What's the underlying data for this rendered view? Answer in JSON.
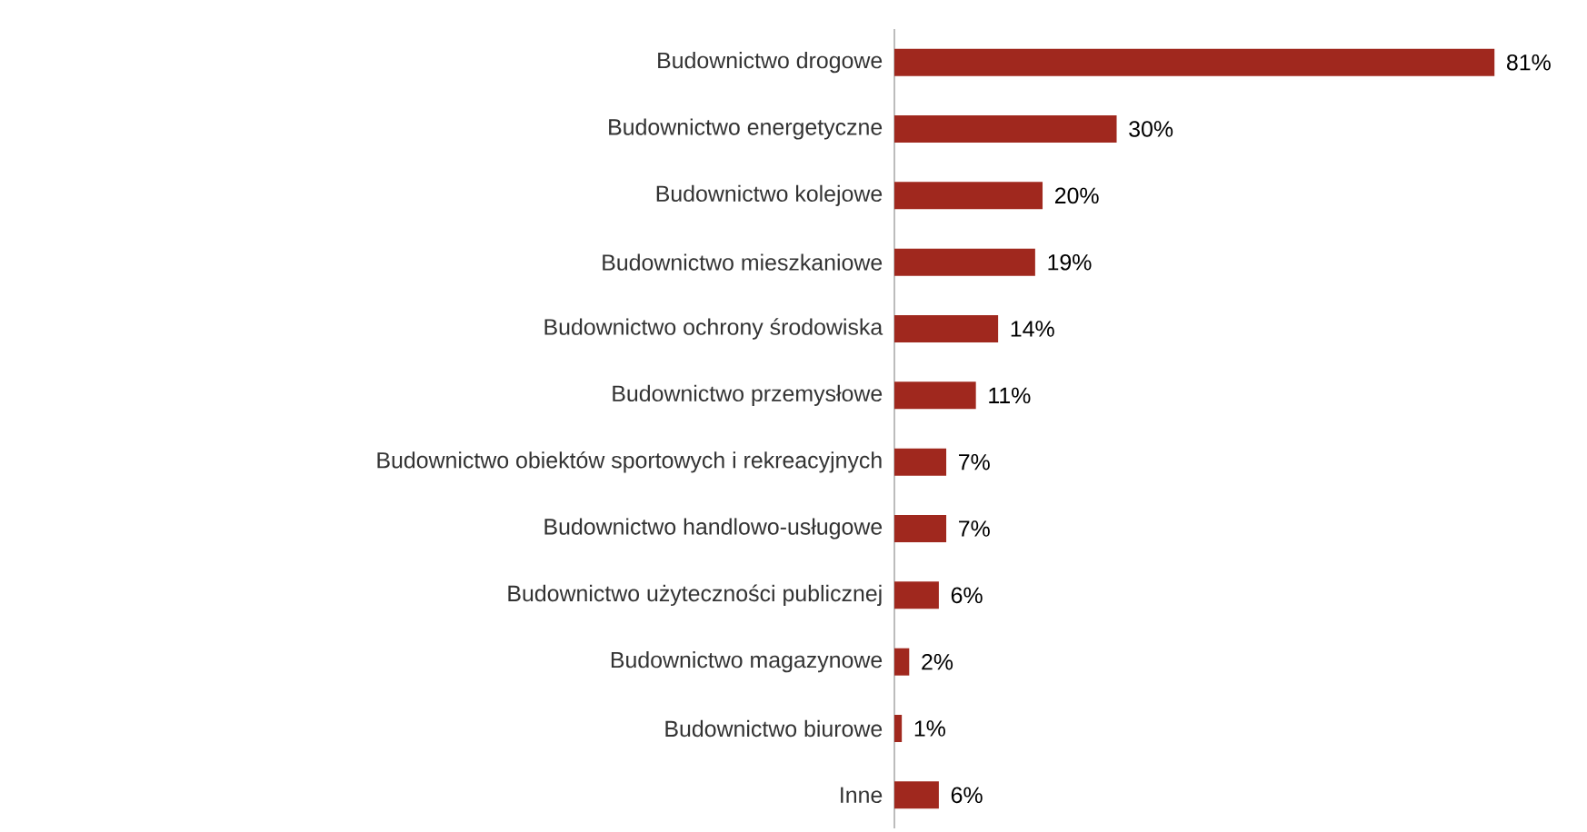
{
  "chart_data": {
    "type": "bar",
    "orientation": "horizontal",
    "color": "#a0281e",
    "categories": [
      "Budownictwo drogowe",
      "Budownictwo energetyczne",
      "Budownictwo kolejowe",
      "Budownictwo mieszkaniowe",
      "Budownictwo ochrony środowiska",
      "Budownictwo przemysłowe",
      "Budownictwo obiektów sportowych i rekreacyjnych",
      "Budownictwo handlowo-usługowe",
      "Budownictwo użyteczności publicznej",
      "Budownictwo magazynowe",
      "Budownictwo biurowe",
      "Inne"
    ],
    "values": [
      81,
      30,
      20,
      19,
      14,
      11,
      7,
      7,
      6,
      2,
      1,
      6
    ],
    "value_labels": [
      "81%",
      "30%",
      "20%",
      "19%",
      "14%",
      "11%",
      "7%",
      "7%",
      "6%",
      "2%",
      "1%",
      "6%"
    ]
  }
}
